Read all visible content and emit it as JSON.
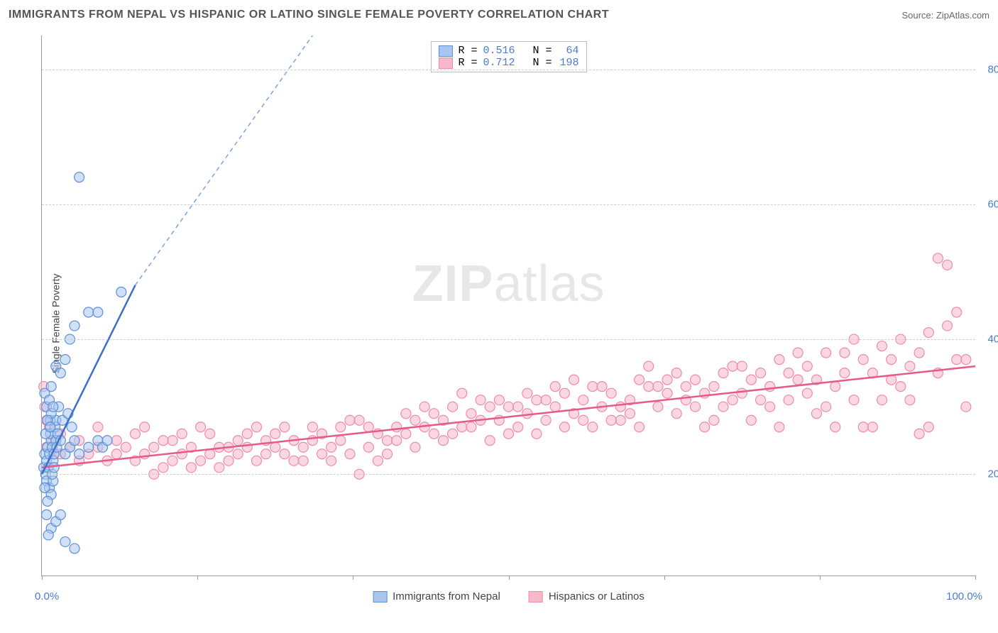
{
  "title": "IMMIGRANTS FROM NEPAL VS HISPANIC OR LATINO SINGLE FEMALE POVERTY CORRELATION CHART",
  "source": "Source: ZipAtlas.com",
  "watermark": {
    "bold": "ZIP",
    "rest": "atlas"
  },
  "ylabel": "Single Female Poverty",
  "x_axis": {
    "min_label": "0.0%",
    "max_label": "100.0%",
    "xlim": [
      0,
      100
    ],
    "tick_positions": [
      0,
      16.67,
      33.33,
      50,
      66.67,
      83.33,
      100
    ]
  },
  "y_axis": {
    "ylim": [
      5,
      85
    ],
    "ticks": [
      20,
      40,
      60,
      80
    ],
    "tick_labels": [
      "20.0%",
      "40.0%",
      "60.0%",
      "80.0%"
    ],
    "grid_color": "#cccccc",
    "grid_dash": "4,4",
    "label_color": "#4a7bd0",
    "label_fontsize": 15
  },
  "background_color": "#ffffff",
  "series": {
    "blue": {
      "label": "Immigrants from Nepal",
      "R": "0.516",
      "N": "64",
      "fill": "#a8c6f0",
      "stroke": "#5d8fd6",
      "fill_opacity": 0.55,
      "marker_radius": 7,
      "trend": {
        "x1": 0,
        "y1": 20,
        "x2": 10,
        "y2": 48,
        "dash_x2": 29,
        "dash_y2": 100,
        "width": 2.5,
        "solid_color": "#3b6fc9",
        "dash_color": "#7aa3e0",
        "dash_pattern": "6,5"
      },
      "points": [
        [
          0.2,
          21
        ],
        [
          0.3,
          23
        ],
        [
          0.5,
          22
        ],
        [
          0.4,
          20
        ],
        [
          0.6,
          24
        ],
        [
          0.8,
          23
        ],
        [
          1.0,
          25
        ],
        [
          1.2,
          22
        ],
        [
          0.9,
          26
        ],
        [
          1.1,
          24
        ],
        [
          0.7,
          21
        ],
        [
          1.3,
          23
        ],
        [
          1.5,
          25
        ],
        [
          1.4,
          27
        ],
        [
          1.6,
          24
        ],
        [
          0.5,
          19
        ],
        [
          0.8,
          18
        ],
        [
          1.0,
          17
        ],
        [
          1.2,
          19
        ],
        [
          0.3,
          18
        ],
        [
          0.6,
          16
        ],
        [
          1.1,
          20
        ],
        [
          1.3,
          21
        ],
        [
          0.4,
          26
        ],
        [
          0.9,
          28
        ],
        [
          1.5,
          28
        ],
        [
          1.7,
          26
        ],
        [
          2.0,
          25
        ],
        [
          2.5,
          23
        ],
        [
          3.0,
          24
        ],
        [
          3.5,
          25
        ],
        [
          4.0,
          23
        ],
        [
          5.0,
          24
        ],
        [
          6.0,
          25
        ],
        [
          6.5,
          24
        ],
        [
          7.0,
          25
        ],
        [
          2.2,
          28
        ],
        [
          2.8,
          29
        ],
        [
          3.2,
          27
        ],
        [
          1.8,
          30
        ],
        [
          0.5,
          14
        ],
        [
          1.0,
          12
        ],
        [
          1.5,
          13
        ],
        [
          2.0,
          14
        ],
        [
          0.7,
          11
        ],
        [
          2.5,
          10
        ],
        [
          3.5,
          9
        ],
        [
          1.0,
          33
        ],
        [
          1.5,
          36
        ],
        [
          2.0,
          35
        ],
        [
          2.5,
          37
        ],
        [
          3.0,
          40
        ],
        [
          3.5,
          42
        ],
        [
          5.0,
          44
        ],
        [
          6.0,
          44
        ],
        [
          8.5,
          47
        ],
        [
          4.0,
          64
        ],
        [
          0.3,
          32
        ],
        [
          0.5,
          30
        ],
        [
          0.8,
          31
        ],
        [
          1.0,
          29
        ],
        [
          1.2,
          30
        ],
        [
          0.6,
          28
        ],
        [
          0.9,
          27
        ]
      ]
    },
    "pink": {
      "label": "Hispanics or Latinos",
      "R": "0.712",
      "N": "198",
      "fill": "#f7b8c9",
      "stroke": "#ed8ba8",
      "fill_opacity": 0.55,
      "marker_radius": 7,
      "trend": {
        "x1": 0,
        "y1": 21,
        "x2": 100,
        "y2": 36,
        "width": 2.5,
        "color": "#e65a8a"
      },
      "points": [
        [
          0.5,
          24
        ],
        [
          1,
          25
        ],
        [
          2,
          23
        ],
        [
          3,
          24
        ],
        [
          4,
          22
        ],
        [
          5,
          23
        ],
        [
          6,
          24
        ],
        [
          7,
          22
        ],
        [
          8,
          23
        ],
        [
          9,
          24
        ],
        [
          10,
          22
        ],
        [
          11,
          23
        ],
        [
          12,
          24
        ],
        [
          13,
          21
        ],
        [
          14,
          22
        ],
        [
          15,
          23
        ],
        [
          16,
          24
        ],
        [
          17,
          22
        ],
        [
          18,
          23
        ],
        [
          19,
          24
        ],
        [
          20,
          22
        ],
        [
          21,
          23
        ],
        [
          22,
          24
        ],
        [
          23,
          22
        ],
        [
          24,
          23
        ],
        [
          25,
          24
        ],
        [
          26,
          23
        ],
        [
          27,
          22
        ],
        [
          28,
          24
        ],
        [
          29,
          25
        ],
        [
          30,
          23
        ],
        [
          31,
          24
        ],
        [
          32,
          25
        ],
        [
          33,
          23
        ],
        [
          34,
          20
        ],
        [
          35,
          24
        ],
        [
          36,
          26
        ],
        [
          37,
          25
        ],
        [
          38,
          27
        ],
        [
          39,
          26
        ],
        [
          40,
          28
        ],
        [
          41,
          27
        ],
        [
          42,
          29
        ],
        [
          43,
          28
        ],
        [
          44,
          30
        ],
        [
          45,
          27
        ],
        [
          46,
          29
        ],
        [
          47,
          31
        ],
        [
          48,
          30
        ],
        [
          49,
          28
        ],
        [
          50,
          30
        ],
        [
          51,
          27
        ],
        [
          52,
          29
        ],
        [
          53,
          31
        ],
        [
          54,
          28
        ],
        [
          55,
          30
        ],
        [
          56,
          32
        ],
        [
          57,
          29
        ],
        [
          58,
          31
        ],
        [
          59,
          33
        ],
        [
          60,
          30
        ],
        [
          61,
          32
        ],
        [
          62,
          28
        ],
        [
          63,
          31
        ],
        [
          64,
          34
        ],
        [
          65,
          33
        ],
        [
          66,
          30
        ],
        [
          67,
          32
        ],
        [
          68,
          35
        ],
        [
          69,
          31
        ],
        [
          70,
          34
        ],
        [
          71,
          27
        ],
        [
          72,
          33
        ],
        [
          73,
          30
        ],
        [
          74,
          36
        ],
        [
          75,
          32
        ],
        [
          76,
          28
        ],
        [
          77,
          35
        ],
        [
          78,
          33
        ],
        [
          79,
          37
        ],
        [
          80,
          31
        ],
        [
          81,
          34
        ],
        [
          82,
          36
        ],
        [
          83,
          29
        ],
        [
          84,
          38
        ],
        [
          85,
          33
        ],
        [
          86,
          35
        ],
        [
          87,
          40
        ],
        [
          88,
          37
        ],
        [
          89,
          27
        ],
        [
          90,
          39
        ],
        [
          91,
          34
        ],
        [
          92,
          40
        ],
        [
          93,
          36
        ],
        [
          94,
          38
        ],
        [
          95,
          41
        ],
        [
          96,
          52
        ],
        [
          97,
          51
        ],
        [
          98,
          44
        ],
        [
          99,
          37
        ],
        [
          2,
          26
        ],
        [
          4,
          25
        ],
        [
          6,
          27
        ],
        [
          8,
          25
        ],
        [
          10,
          26
        ],
        [
          12,
          20
        ],
        [
          14,
          25
        ],
        [
          16,
          21
        ],
        [
          18,
          26
        ],
        [
          20,
          24
        ],
        [
          22,
          26
        ],
        [
          24,
          25
        ],
        [
          26,
          27
        ],
        [
          28,
          22
        ],
        [
          30,
          26
        ],
        [
          32,
          27
        ],
        [
          34,
          28
        ],
        [
          36,
          22
        ],
        [
          38,
          25
        ],
        [
          40,
          24
        ],
        [
          42,
          26
        ],
        [
          44,
          26
        ],
        [
          46,
          27
        ],
        [
          48,
          25
        ],
        [
          50,
          26
        ],
        [
          52,
          32
        ],
        [
          54,
          31
        ],
        [
          56,
          27
        ],
        [
          58,
          28
        ],
        [
          60,
          33
        ],
        [
          62,
          30
        ],
        [
          64,
          27
        ],
        [
          66,
          33
        ],
        [
          68,
          29
        ],
        [
          70,
          30
        ],
        [
          72,
          28
        ],
        [
          74,
          31
        ],
        [
          76,
          34
        ],
        [
          78,
          30
        ],
        [
          80,
          35
        ],
        [
          82,
          32
        ],
        [
          84,
          30
        ],
        [
          86,
          38
        ],
        [
          88,
          27
        ],
        [
          90,
          31
        ],
        [
          92,
          33
        ],
        [
          94,
          26
        ],
        [
          96,
          35
        ],
        [
          98,
          37
        ],
        [
          99,
          30
        ],
        [
          11,
          27
        ],
        [
          15,
          26
        ],
        [
          19,
          21
        ],
        [
          23,
          27
        ],
        [
          27,
          25
        ],
        [
          31,
          22
        ],
        [
          35,
          27
        ],
        [
          39,
          29
        ],
        [
          43,
          25
        ],
        [
          47,
          28
        ],
        [
          51,
          30
        ],
        [
          55,
          33
        ],
        [
          59,
          27
        ],
        [
          63,
          29
        ],
        [
          67,
          34
        ],
        [
          71,
          32
        ],
        [
          75,
          36
        ],
        [
          79,
          27
        ],
        [
          83,
          34
        ],
        [
          87,
          31
        ],
        [
          91,
          37
        ],
        [
          95,
          27
        ],
        [
          13,
          25
        ],
        [
          17,
          27
        ],
        [
          21,
          25
        ],
        [
          25,
          26
        ],
        [
          29,
          27
        ],
        [
          33,
          28
        ],
        [
          37,
          23
        ],
        [
          41,
          30
        ],
        [
          45,
          32
        ],
        [
          49,
          31
        ],
        [
          53,
          26
        ],
        [
          57,
          34
        ],
        [
          61,
          28
        ],
        [
          65,
          36
        ],
        [
          69,
          33
        ],
        [
          73,
          35
        ],
        [
          77,
          31
        ],
        [
          81,
          38
        ],
        [
          85,
          27
        ],
        [
          89,
          35
        ],
        [
          93,
          31
        ],
        [
          97,
          42
        ],
        [
          0.2,
          33
        ],
        [
          0.3,
          30
        ],
        [
          0.5,
          28
        ],
        [
          0.8,
          27
        ]
      ]
    }
  },
  "statsbox": {
    "r_label": "R =",
    "n_label": "N ="
  },
  "legend": {
    "items": [
      {
        "key": "blue",
        "label": "Immigrants from Nepal"
      },
      {
        "key": "pink",
        "label": "Hispanics or Latinos"
      }
    ]
  }
}
